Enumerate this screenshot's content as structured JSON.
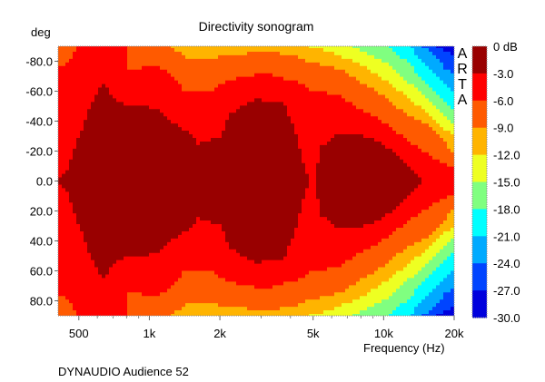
{
  "chart_data": {
    "type": "heatmap",
    "title": "Directivity sonogram",
    "xlabel": "Frequency (Hz)",
    "ylabel": "deg",
    "footer": "DYNAUDIO Audience 52",
    "watermark": "ARTA",
    "x_scale": "log",
    "xlim": [
      408,
      20000
    ],
    "ylim": [
      -90,
      90
    ],
    "x_ticks": [
      {
        "value": 500,
        "label": "500"
      },
      {
        "value": 1000,
        "label": "1k"
      },
      {
        "value": 2000,
        "label": "2k"
      },
      {
        "value": 5000,
        "label": "5k"
      },
      {
        "value": 10000,
        "label": "10k"
      },
      {
        "value": 20000,
        "label": "20k"
      }
    ],
    "x_minor_ticks": [
      600,
      700,
      800,
      900,
      3000,
      4000,
      6000,
      7000,
      8000,
      9000
    ],
    "y_ticks": [
      {
        "value": -80,
        "label": "-80.0"
      },
      {
        "value": -60,
        "label": "-60.0"
      },
      {
        "value": -40,
        "label": "-40.0"
      },
      {
        "value": -20,
        "label": "-20.0"
      },
      {
        "value": 0,
        "label": "0.0"
      },
      {
        "value": 20,
        "label": "20.0"
      },
      {
        "value": 40,
        "label": "40.0"
      },
      {
        "value": 60,
        "label": "60.0"
      },
      {
        "value": 80,
        "label": "80.0"
      }
    ],
    "colorbar": {
      "labels": [
        "0 dB",
        "-3.0",
        "-6.0",
        "-9.0",
        "-12.0",
        "-15.0",
        "-18.0",
        "-21.0",
        "-24.0",
        "-27.0",
        "-30.0"
      ],
      "colors": [
        "#990000",
        "#ff0000",
        "#ff5a00",
        "#ffb400",
        "#eeff22",
        "#80ff80",
        "#00ffff",
        "#00aaff",
        "#0044ff",
        "#0000dd"
      ]
    },
    "contour_levels_db": [
      -3,
      -6,
      -9,
      -12,
      -15,
      -18,
      -21,
      -24,
      -27
    ],
    "contour_note": "off-axis angle (deg, symmetric ±) where response falls below each level; 95 = not reached",
    "contours": [
      {
        "freq": 408,
        "angles": [
          0,
          76,
          95,
          95,
          95,
          95,
          95,
          95,
          95
        ]
      },
      {
        "freq": 442,
        "angles": [
          6,
          78,
          95,
          95,
          95,
          95,
          95,
          95,
          95
        ]
      },
      {
        "freq": 470,
        "angles": [
          18,
          83,
          95,
          95,
          95,
          95,
          95,
          95,
          95
        ]
      },
      {
        "freq": 513,
        "angles": [
          34,
          95,
          95,
          95,
          95,
          95,
          95,
          95,
          95
        ]
      },
      {
        "freq": 561,
        "angles": [
          50,
          95,
          95,
          95,
          95,
          95,
          95,
          95,
          95
        ]
      },
      {
        "freq": 612,
        "angles": [
          63,
          95,
          95,
          95,
          95,
          95,
          95,
          95,
          95
        ]
      },
      {
        "freq": 640,
        "angles": [
          66,
          95,
          95,
          95,
          95,
          95,
          95,
          95,
          95
        ]
      },
      {
        "freq": 699,
        "angles": [
          56,
          95,
          95,
          95,
          95,
          95,
          95,
          95,
          95
        ]
      },
      {
        "freq": 798,
        "angles": [
          50,
          92,
          95,
          95,
          95,
          95,
          95,
          95,
          95
        ]
      },
      {
        "freq": 815,
        "angles": [
          50,
          74,
          95,
          95,
          95,
          95,
          95,
          95,
          95
        ]
      },
      {
        "freq": 872,
        "angles": [
          50,
          73,
          95,
          95,
          95,
          95,
          95,
          95,
          95
        ]
      },
      {
        "freq": 953,
        "angles": [
          51,
          77,
          95,
          95,
          95,
          95,
          95,
          95,
          95
        ]
      },
      {
        "freq": 1088,
        "angles": [
          47,
          76,
          95,
          95,
          95,
          95,
          95,
          95,
          95
        ]
      },
      {
        "freq": 1241,
        "angles": [
          40,
          71,
          89,
          95,
          95,
          95,
          95,
          95,
          95
        ]
      },
      {
        "freq": 1417,
        "angles": [
          34,
          60,
          83,
          95,
          95,
          95,
          95,
          95,
          95
        ]
      },
      {
        "freq": 1618,
        "angles": [
          25,
          59,
          81,
          95,
          95,
          95,
          95,
          95,
          95
        ]
      },
      {
        "freq": 1847,
        "angles": [
          28,
          60,
          82,
          95,
          95,
          95,
          95,
          95,
          95
        ]
      },
      {
        "freq": 2018,
        "angles": [
          30,
          65,
          83,
          95,
          95,
          95,
          95,
          95,
          95
        ]
      },
      {
        "freq": 2204,
        "angles": [
          44,
          67,
          83,
          95,
          95,
          95,
          95,
          95,
          95
        ]
      },
      {
        "freq": 2516,
        "angles": [
          50,
          70,
          85,
          95,
          95,
          95,
          95,
          95,
          95
        ]
      },
      {
        "freq": 2872,
        "angles": [
          55,
          71,
          86,
          95,
          95,
          95,
          95,
          95,
          95
        ]
      },
      {
        "freq": 3279,
        "angles": [
          52,
          71,
          86,
          95,
          95,
          95,
          95,
          95,
          95
        ]
      },
      {
        "freq": 3743,
        "angles": [
          52,
          68,
          85,
          95,
          95,
          95,
          95,
          95,
          95
        ]
      },
      {
        "freq": 4274,
        "angles": [
          30,
          67,
          83,
          95,
          95,
          95,
          95,
          95,
          95
        ]
      },
      {
        "freq": 4586,
        "angles": [
          9,
          64,
          81,
          95,
          95,
          95,
          95,
          95,
          95
        ]
      },
      {
        "freq": 4880,
        "angles": [
          0,
          61,
          79,
          89,
          95,
          95,
          95,
          95,
          95
        ]
      },
      {
        "freq": 5150,
        "angles": [
          0,
          61,
          79,
          89,
          95,
          95,
          95,
          95,
          95
        ]
      },
      {
        "freq": 5330,
        "angles": [
          22,
          60,
          78,
          88,
          95,
          95,
          95,
          95,
          95
        ]
      },
      {
        "freq": 6084,
        "angles": [
          29,
          58,
          76,
          86,
          95,
          95,
          95,
          95,
          95
        ]
      },
      {
        "freq": 6644,
        "angles": [
          32,
          56,
          74,
          83,
          95,
          95,
          95,
          95,
          95
        ]
      },
      {
        "freq": 7588,
        "angles": [
          32,
          50,
          68,
          80,
          89,
          95,
          95,
          95,
          95
        ]
      },
      {
        "freq": 8664,
        "angles": [
          29,
          45,
          63,
          74,
          85,
          95,
          95,
          95,
          95
        ]
      },
      {
        "freq": 9891,
        "angles": [
          25,
          40,
          57,
          68,
          80,
          92,
          95,
          95,
          95
        ]
      },
      {
        "freq": 11291,
        "angles": [
          18,
          33,
          50,
          62,
          74,
          86,
          95,
          95,
          95
        ]
      },
      {
        "freq": 12890,
        "angles": [
          8,
          26,
          44,
          55,
          65,
          78,
          90,
          95,
          95
        ]
      },
      {
        "freq": 14715,
        "angles": [
          0,
          20,
          39,
          48,
          59,
          68,
          80,
          90,
          95
        ]
      },
      {
        "freq": 16800,
        "angles": [
          0,
          14,
          33,
          40,
          50,
          58,
          71,
          82,
          90
        ]
      },
      {
        "freq": 18340,
        "angles": [
          0,
          11,
          25,
          34,
          43,
          52,
          64,
          75,
          86
        ]
      },
      {
        "freq": 20000,
        "angles": [
          0,
          10,
          18,
          30,
          38,
          48,
          59,
          71,
          84
        ]
      }
    ]
  }
}
